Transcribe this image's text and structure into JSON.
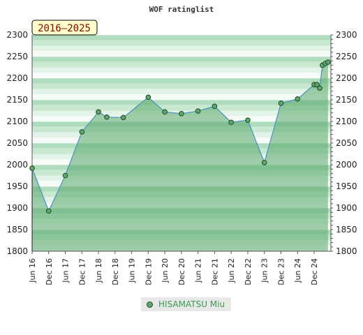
{
  "chart_data": {
    "type": "area",
    "title": "WOF ratinglist",
    "period_badge": "2016–2025",
    "ylim": [
      1800,
      2300
    ],
    "y_ticks": [
      1800,
      1850,
      1900,
      1950,
      2000,
      2050,
      2100,
      2150,
      2200,
      2250,
      2300
    ],
    "x_tick_labels": [
      "Jun 16",
      "Dec 16",
      "Jun 17",
      "Dec 17",
      "Jun 18",
      "Dec 18",
      "Jun 19",
      "Dec 19",
      "Jun 20",
      "Dec 20",
      "Jun 21",
      "Dec 21",
      "Jun 22",
      "Dec 22",
      "Jun 23",
      "Dec 23",
      "Jun 24",
      "Dec 24"
    ],
    "grid": true,
    "legend_position": "bottom-center",
    "series": [
      {
        "name": "HISAMATSU Miu",
        "color": "#5ea66e",
        "points": [
          {
            "x": "Jun 16",
            "y": 1992
          },
          {
            "x": "Dec 16",
            "y": 1893
          },
          {
            "x": "Jun 17",
            "y": 1975
          },
          {
            "x": "Dec 17",
            "y": 2076
          },
          {
            "x": "Jun 18",
            "y": 2122
          },
          {
            "x": "Sep 18",
            "y": 2110
          },
          {
            "x": "Mar 19",
            "y": 2109
          },
          {
            "x": "Dec 19",
            "y": 2156
          },
          {
            "x": "Jun 20",
            "y": 2122
          },
          {
            "x": "Dec 20",
            "y": 2118
          },
          {
            "x": "Jun 21",
            "y": 2124
          },
          {
            "x": "Dec 21",
            "y": 2135
          },
          {
            "x": "Jun 22",
            "y": 2098
          },
          {
            "x": "Dec 22",
            "y": 2103
          },
          {
            "x": "Jun 23",
            "y": 2005
          },
          {
            "x": "Dec 23",
            "y": 2142
          },
          {
            "x": "Jun 24",
            "y": 2152
          },
          {
            "x": "Dec 24",
            "y": 2185
          },
          {
            "x": "Jan 25",
            "y": 2185
          },
          {
            "x": "Feb 25",
            "y": 2177
          },
          {
            "x": "Mar 25",
            "y": 2230
          },
          {
            "x": "Apr 25",
            "y": 2234
          },
          {
            "x": "May 25",
            "y": 2237
          }
        ]
      }
    ]
  }
}
